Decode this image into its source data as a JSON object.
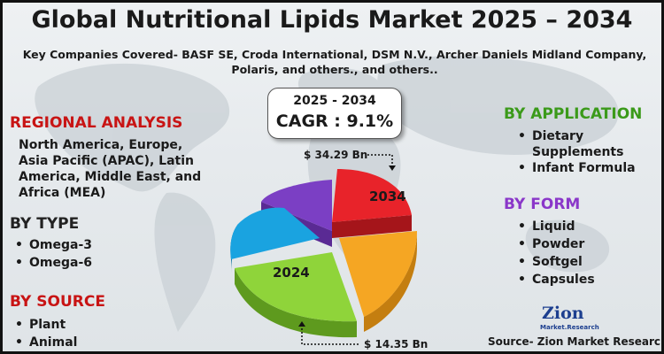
{
  "title": "Global Nutritional Lipids Market 2025 – 2034",
  "subtitle": "Key Companies Covered- BASF SE, Croda International, DSM N.V., Archer Daniels Midland Company, Polaris, and others., and others..",
  "cagr": {
    "years": "2025 - 2034",
    "value": "CAGR : 9.1%"
  },
  "regional": {
    "heading": "REGIONAL ANALYSIS",
    "text": "North America, Europe, Asia Pacific (APAC), Latin America, Middle East, and Africa (MEA)"
  },
  "by_type": {
    "heading": "BY TYPE",
    "items": [
      "Omega-3",
      "Omega-6"
    ]
  },
  "by_source": {
    "heading": "BY SOURCE",
    "items": [
      "Plant",
      "Animal"
    ]
  },
  "by_application": {
    "heading": "BY  APPLICATION",
    "items": [
      "Dietary Supplements",
      "Infant Formula"
    ]
  },
  "by_form": {
    "heading": "BY FORM",
    "items": [
      "Liquid",
      "Powder",
      "Softgel",
      "Capsules"
    ]
  },
  "pie": {
    "label_2034": "2034",
    "label_2024": "2024",
    "value_2034": "$ 34.29 Bn",
    "value_2024": "$ 14.35 Bn",
    "colors": [
      "#e8232a",
      "#f5a623",
      "#8fd43a",
      "#1aa3e0",
      "#7b3fc4"
    ]
  },
  "logo": {
    "name": "Zion",
    "sub": "Market.Research"
  },
  "source": "Source- Zion Market Research"
}
